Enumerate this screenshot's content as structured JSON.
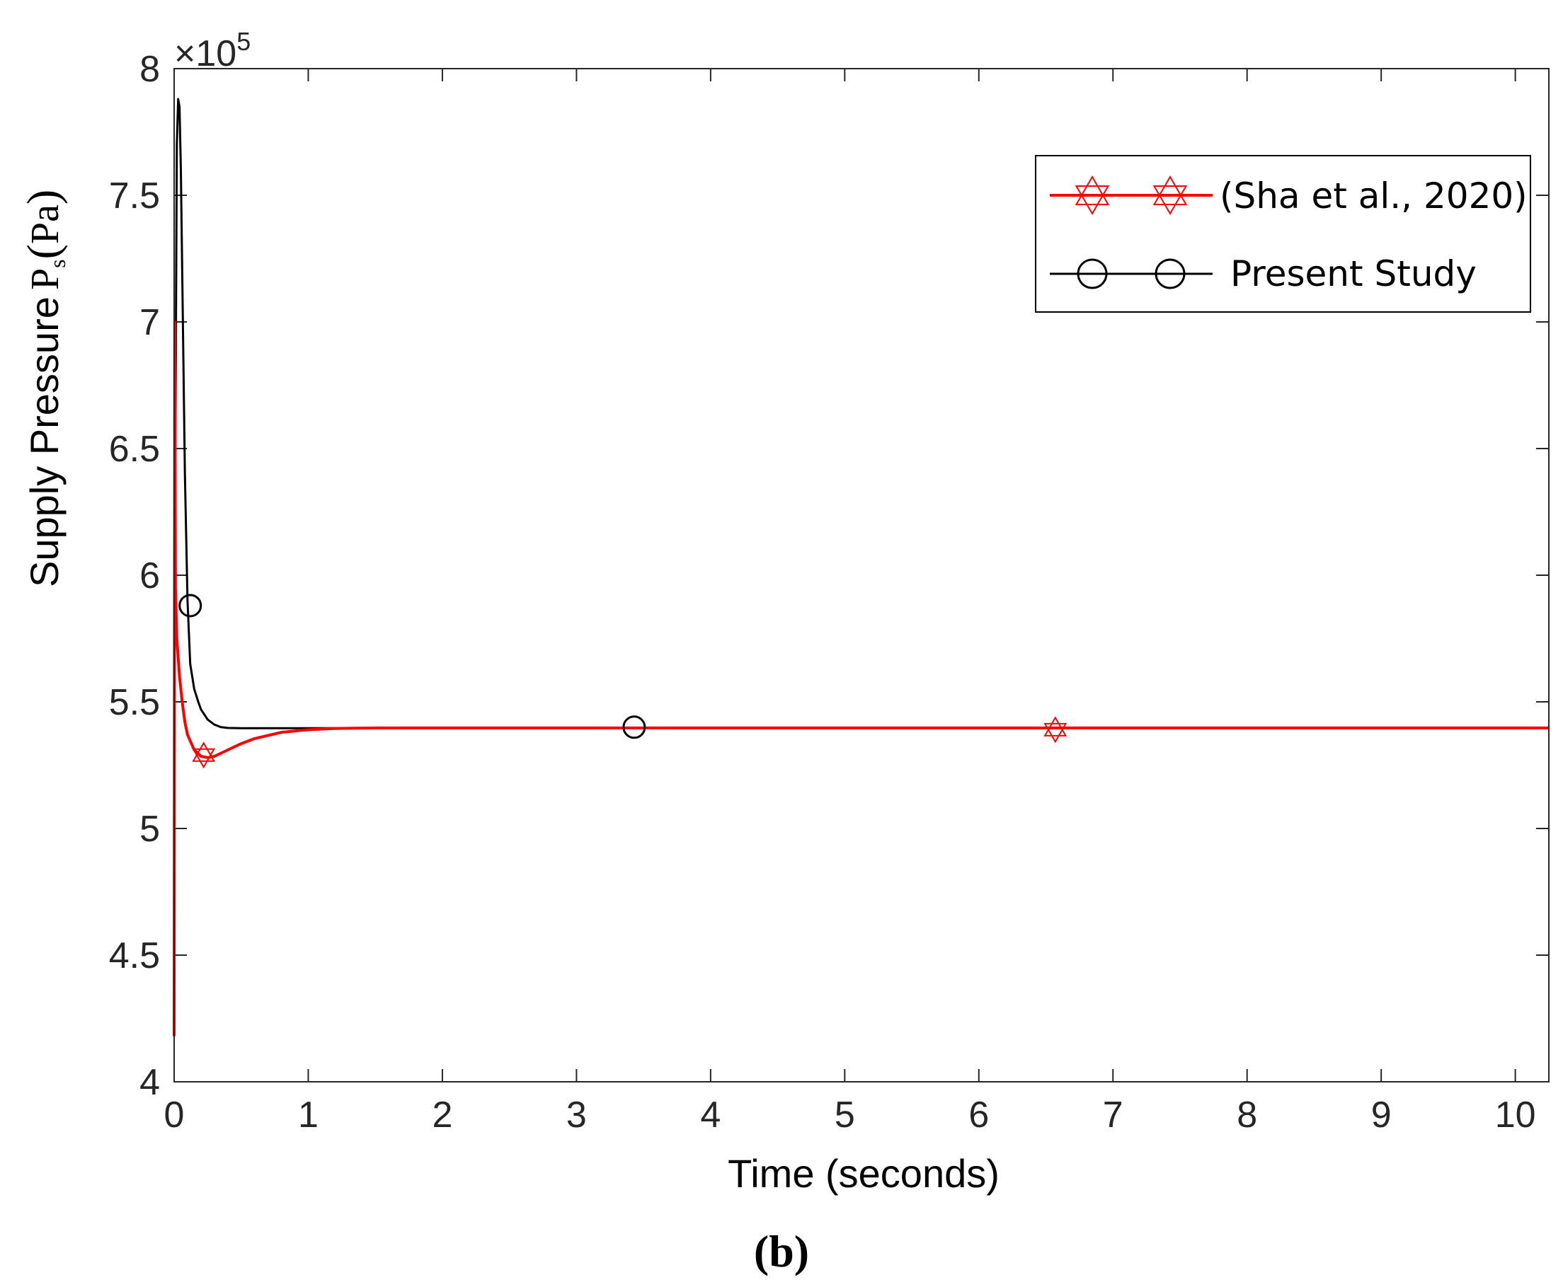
{
  "chart_data": {
    "type": "line",
    "xlabel": "Time (seconds)",
    "ylabel_prefix": "Supply Pressure",
    "ylabel_symbol": "P",
    "ylabel_subscript": "s",
    "ylabel_unit": "Pa",
    "xlim": [
      0,
      10.25
    ],
    "ylim": [
      4,
      8
    ],
    "x_ticks": [
      0,
      1,
      2,
      3,
      4,
      5,
      6,
      7,
      8,
      9,
      10
    ],
    "y_ticks": [
      4,
      4.5,
      5,
      5.5,
      6,
      6.5,
      7,
      7.5,
      8
    ],
    "y_exponent_base": "×10",
    "y_exponent_power": "5",
    "y_scale_factor": 100000,
    "grid": false,
    "legend_position": "top-right",
    "panel_label": "(b)",
    "series": [
      {
        "name": "(Sha et al., 2020)",
        "color": "#ff0000",
        "marker": "hexagram",
        "x": [
          0,
          0.005,
          0.01,
          0.02,
          0.04,
          0.06,
          0.08,
          0.1,
          0.15,
          0.2,
          0.25,
          0.3,
          0.4,
          0.5,
          0.6,
          0.8,
          1.0,
          1.2,
          1.5,
          1.7,
          2.0,
          3.0,
          5.0,
          7.0,
          10.25
        ],
        "y": [
          4.18,
          7.0,
          5.95,
          5.75,
          5.6,
          5.5,
          5.42,
          5.37,
          5.31,
          5.285,
          5.28,
          5.285,
          5.31,
          5.335,
          5.355,
          5.38,
          5.39,
          5.395,
          5.397,
          5.397,
          5.397,
          5.397,
          5.397,
          5.397,
          5.397
        ],
        "marker_x": [
          0.22,
          6.57
        ],
        "marker_y": [
          5.29,
          5.39
        ]
      },
      {
        "name": "Present Study",
        "color": "#000000",
        "marker": "circle",
        "x": [
          0,
          0.01,
          0.02,
          0.03,
          0.04,
          0.05,
          0.06,
          0.07,
          0.08,
          0.1,
          0.12,
          0.15,
          0.18,
          0.2,
          0.25,
          0.3,
          0.35,
          0.4,
          0.5,
          0.7,
          1.0,
          2.0,
          3.0,
          5.0,
          7.0,
          10.25
        ],
        "y": [
          5.4,
          6.6,
          7.7,
          7.88,
          7.85,
          7.6,
          7.2,
          6.8,
          6.4,
          5.9,
          5.65,
          5.55,
          5.5,
          5.47,
          5.43,
          5.41,
          5.4,
          5.397,
          5.396,
          5.396,
          5.396,
          5.397,
          5.397,
          5.397,
          5.397,
          5.397
        ],
        "marker_x": [
          0.12,
          3.43
        ],
        "marker_y": [
          5.88,
          5.4
        ]
      }
    ]
  }
}
